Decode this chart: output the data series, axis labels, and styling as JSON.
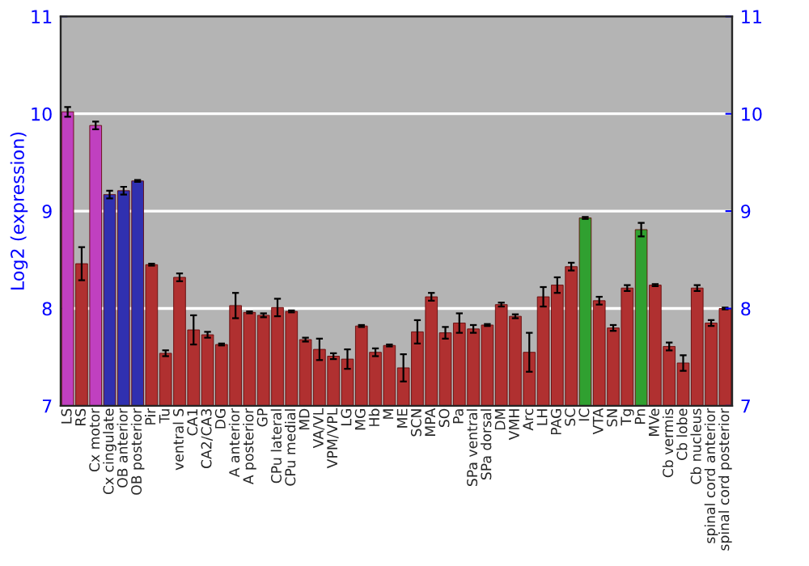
{
  "chart_data": {
    "type": "bar",
    "ylabel": "Log2 (expression)",
    "categories": [
      "LS",
      "RS",
      "Cx motor",
      "Cx cingulate",
      "OB anterior",
      "OB posterior",
      "Pir",
      "Tu",
      "ventral S",
      "CA1",
      "CA2/CA3",
      "DG",
      "A anterior",
      "A posterior",
      "GP",
      "CPu lateral",
      "CPu medial",
      "MD",
      "VA/VL",
      "VPM/VPL",
      "LG",
      "MG",
      "Hb",
      "M",
      "ME",
      "SCN",
      "MPA",
      "SO",
      "Pa",
      "SPa ventral",
      "SPa dorsal",
      "DM",
      "VMH",
      "Arc",
      "LH",
      "PAG",
      "SC",
      "IC",
      "VTA",
      "SN",
      "Tg",
      "Pn",
      "MVe",
      "Cb vermis",
      "Cb lobe",
      "Cb nucleus",
      "spinal cord anterior",
      "spinal cord posterior"
    ],
    "values": [
      10.02,
      8.46,
      9.88,
      9.17,
      9.21,
      9.31,
      8.45,
      7.54,
      8.32,
      7.78,
      7.73,
      7.63,
      8.03,
      7.96,
      7.93,
      8.01,
      7.97,
      7.68,
      7.58,
      7.51,
      7.48,
      7.82,
      7.55,
      7.62,
      7.39,
      7.76,
      8.12,
      7.75,
      7.85,
      7.79,
      7.83,
      8.04,
      7.92,
      7.55,
      8.12,
      8.24,
      8.43,
      8.93,
      8.08,
      7.8,
      8.21,
      8.81,
      8.24,
      7.61,
      7.44,
      8.21,
      7.85,
      8.0
    ],
    "errors": [
      0.05,
      0.17,
      0.04,
      0.04,
      0.04,
      0.01,
      0.01,
      0.03,
      0.04,
      0.15,
      0.03,
      0.01,
      0.13,
      0.01,
      0.02,
      0.09,
      0.01,
      0.02,
      0.11,
      0.03,
      0.1,
      0.01,
      0.04,
      0.01,
      0.14,
      0.12,
      0.04,
      0.06,
      0.1,
      0.04,
      0.01,
      0.02,
      0.02,
      0.2,
      0.1,
      0.08,
      0.04,
      0.01,
      0.04,
      0.03,
      0.03,
      0.07,
      0.01,
      0.04,
      0.08,
      0.03,
      0.03,
      0.01
    ],
    "colors": [
      "#c040c0",
      "#b03030",
      "#c040c0",
      "#3030b0",
      "#3030b0",
      "#3030b0",
      "#b03030",
      "#b03030",
      "#b03030",
      "#b03030",
      "#b03030",
      "#b03030",
      "#b03030",
      "#b03030",
      "#b03030",
      "#b03030",
      "#b03030",
      "#b03030",
      "#b03030",
      "#b03030",
      "#b03030",
      "#b03030",
      "#b03030",
      "#b03030",
      "#b03030",
      "#b03030",
      "#b03030",
      "#b03030",
      "#b03030",
      "#b03030",
      "#b03030",
      "#b03030",
      "#b03030",
      "#b03030",
      "#b03030",
      "#b03030",
      "#b03030",
      "#30a030",
      "#b03030",
      "#b03030",
      "#b03030",
      "#30a030",
      "#b03030",
      "#b03030",
      "#b03030",
      "#b03030",
      "#b03030",
      "#b03030"
    ],
    "ylim": [
      7,
      11
    ],
    "yticks": [
      7,
      8,
      9,
      10,
      11
    ],
    "y2lim": [
      7,
      11
    ],
    "y2ticks": [
      7,
      8,
      9,
      10,
      11
    ],
    "grid": "y",
    "legend": false
  }
}
